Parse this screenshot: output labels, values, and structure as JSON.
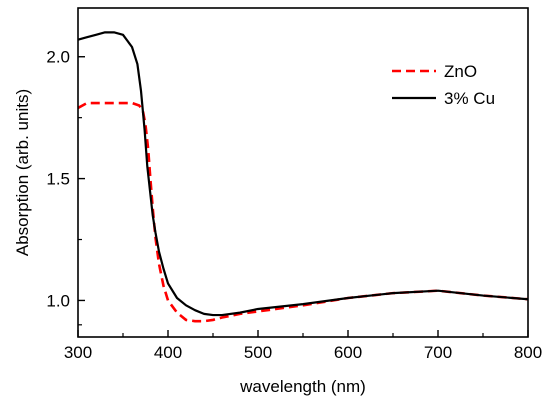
{
  "chart_data": {
    "type": "line",
    "title": "",
    "xlabel": "wavelength (nm)",
    "ylabel": "Absorption (arb. units)",
    "xlim": [
      300,
      800
    ],
    "ylim": [
      0.85,
      2.2
    ],
    "xticks": [
      300,
      400,
      500,
      600,
      700,
      800
    ],
    "yticks": [
      1.0,
      1.5,
      2.0
    ],
    "ytick_labels": [
      "1.0",
      "1.5",
      "2.0"
    ],
    "grid": false,
    "legend": "top-right",
    "series": [
      {
        "name": "ZnO",
        "color": "#ff0000",
        "dash": "dashed",
        "x": [
          300,
          305,
          310,
          320,
          340,
          360,
          368,
          372,
          375,
          378,
          380,
          383,
          386,
          390,
          395,
          400,
          410,
          420,
          430,
          440,
          450,
          460,
          480,
          500,
          550,
          600,
          650,
          700,
          750,
          800
        ],
        "y": [
          1.79,
          1.8,
          1.81,
          1.81,
          1.81,
          1.81,
          1.8,
          1.78,
          1.72,
          1.62,
          1.52,
          1.38,
          1.26,
          1.15,
          1.06,
          1.0,
          0.95,
          0.92,
          0.915,
          0.915,
          0.92,
          0.93,
          0.945,
          0.955,
          0.98,
          1.01,
          1.03,
          1.04,
          1.02,
          1.005
        ]
      },
      {
        "name": "3% Cu",
        "color": "#000000",
        "dash": "solid",
        "x": [
          300,
          310,
          320,
          330,
          340,
          350,
          360,
          366,
          370,
          374,
          377,
          380,
          383,
          386,
          390,
          395,
          400,
          410,
          420,
          430,
          440,
          450,
          460,
          480,
          500,
          550,
          600,
          650,
          700,
          750,
          800
        ],
        "y": [
          2.07,
          2.08,
          2.09,
          2.1,
          2.1,
          2.09,
          2.04,
          1.97,
          1.86,
          1.7,
          1.55,
          1.45,
          1.35,
          1.28,
          1.2,
          1.13,
          1.07,
          1.01,
          0.98,
          0.96,
          0.945,
          0.94,
          0.94,
          0.95,
          0.965,
          0.985,
          1.01,
          1.03,
          1.04,
          1.02,
          1.005
        ]
      }
    ]
  }
}
